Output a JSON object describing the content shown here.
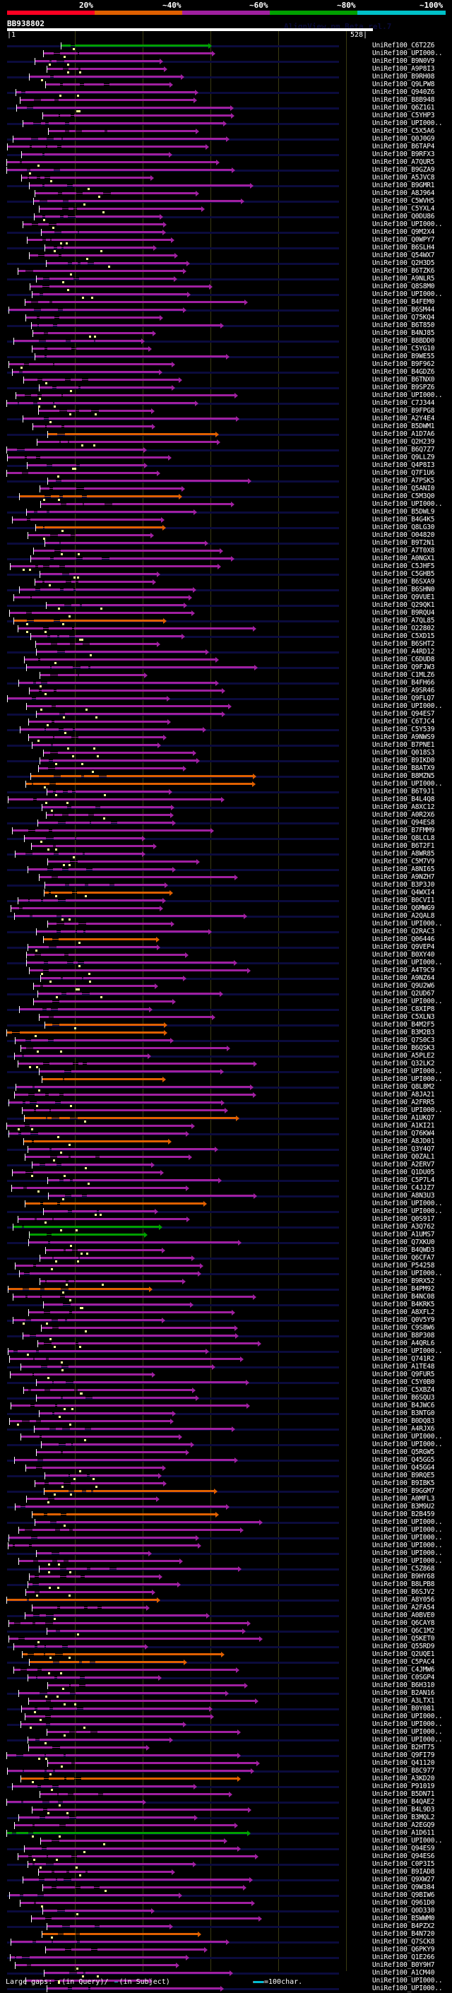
{
  "scale": {
    "labels": [
      "20%",
      "~40%",
      "~60%",
      "~80%",
      "~100%"
    ],
    "colors": [
      "#ff0022",
      "#e06000",
      "#a020a0",
      "#00a000",
      "#00c0c8"
    ]
  },
  "watermark": "AlignView.pm Beta rel.7",
  "query": {
    "id": "BB938802",
    "start": "|1",
    "end": "528|",
    "length": 528
  },
  "colors": {
    "low": "#ff0022",
    "orange": "#e06000",
    "purple": "#a020a0",
    "green": "#00a000",
    "cyan": "#00c0c8",
    "gap_query": "#ffff99"
  },
  "hits": [
    {
      "name": "UniRef100_C6T2Z6",
      "identity": "green"
    },
    {
      "name": "UniRef100_UPI000..",
      "identity": "purple"
    },
    {
      "name": "UniRef100_B9N0V9",
      "identity": "purple"
    },
    {
      "name": "UniRef100_A9P8I3",
      "identity": "purple"
    },
    {
      "name": "UniRef100_B9RH08",
      "identity": "purple"
    },
    {
      "name": "UniRef100_Q9LPW8",
      "identity": "purple"
    },
    {
      "name": "UniRef100_Q940Z6",
      "identity": "purple"
    },
    {
      "name": "UniRef100_B8B948",
      "identity": "purple"
    },
    {
      "name": "UniRef100_Q6Z1G1",
      "identity": "purple"
    },
    {
      "name": "UniRef100_C5YHP3",
      "identity": "purple"
    },
    {
      "name": "UniRef100_UPI000..",
      "identity": "purple"
    },
    {
      "name": "UniRef100_C5X5A6",
      "identity": "purple"
    },
    {
      "name": "UniRef100_Q0J0G9",
      "identity": "purple"
    },
    {
      "name": "UniRef100_B6TAP4",
      "identity": "purple"
    },
    {
      "name": "UniRef100_B9RFX3",
      "identity": "purple"
    },
    {
      "name": "UniRef100_A7QUR5",
      "identity": "purple"
    },
    {
      "name": "UniRef100_B9GZA9",
      "identity": "purple"
    },
    {
      "name": "UniRef100_A5JVC8",
      "identity": "purple"
    },
    {
      "name": "UniRef100_B9GMR1",
      "identity": "purple"
    },
    {
      "name": "UniRef100_A8J964",
      "identity": "purple"
    },
    {
      "name": "UniRef100_C5WVH5",
      "identity": "purple"
    },
    {
      "name": "UniRef100_C5YXL4",
      "identity": "purple"
    },
    {
      "name": "UniRef100_Q0DU86",
      "identity": "purple"
    },
    {
      "name": "UniRef100_UPI000..",
      "identity": "purple"
    },
    {
      "name": "UniRef100_Q9M2X4",
      "identity": "purple"
    },
    {
      "name": "UniRef100_Q0WPY7",
      "identity": "purple"
    },
    {
      "name": "UniRef100_B6SLH4",
      "identity": "purple"
    },
    {
      "name": "UniRef100_Q54WX7",
      "identity": "purple"
    },
    {
      "name": "UniRef100_Q2H3D5",
      "identity": "purple"
    },
    {
      "name": "UniRef100_B6TZK6",
      "identity": "purple"
    },
    {
      "name": "UniRef100_A9NLR5",
      "identity": "purple"
    },
    {
      "name": "UniRef100_Q8S8M0",
      "identity": "purple"
    },
    {
      "name": "UniRef100_UPI000..",
      "identity": "purple"
    },
    {
      "name": "UniRef100_B4FEM0",
      "identity": "purple"
    },
    {
      "name": "UniRef100_B6SM44",
      "identity": "purple"
    },
    {
      "name": "UniRef100_Q75KQ4",
      "identity": "purple"
    },
    {
      "name": "UniRef100_B6T850",
      "identity": "purple"
    },
    {
      "name": "UniRef100_B4NJ85",
      "identity": "purple"
    },
    {
      "name": "UniRef100_B8BDD0",
      "identity": "purple"
    },
    {
      "name": "UniRef100_C5YG10",
      "identity": "purple"
    },
    {
      "name": "UniRef100_B9WE55",
      "identity": "purple"
    },
    {
      "name": "UniRef100_B9F962",
      "identity": "purple"
    },
    {
      "name": "UniRef100_B4GDZ6",
      "identity": "purple"
    },
    {
      "name": "UniRef100_B6TNX0",
      "identity": "purple"
    },
    {
      "name": "UniRef100_B9SPZ6",
      "identity": "purple"
    },
    {
      "name": "UniRef100_UPI000..",
      "identity": "purple"
    },
    {
      "name": "UniRef100_C7J344",
      "identity": "purple"
    },
    {
      "name": "UniRef100_B9FPG8",
      "identity": "purple"
    },
    {
      "name": "UniRef100_A2Y4E4",
      "identity": "purple"
    },
    {
      "name": "UniRef100_B5DWM1",
      "identity": "purple"
    },
    {
      "name": "UniRef100_A1D7A6",
      "identity": "orange"
    },
    {
      "name": "UniRef100_Q2H239",
      "identity": "purple"
    },
    {
      "name": "UniRef100_B6Q7Z7",
      "identity": "purple"
    },
    {
      "name": "UniRef100_Q9LLZ9",
      "identity": "purple"
    },
    {
      "name": "UniRef100_Q4P8I3",
      "identity": "purple"
    },
    {
      "name": "UniRef100_Q7F1U6",
      "identity": "purple"
    },
    {
      "name": "UniRef100_A7PSK5",
      "identity": "purple"
    },
    {
      "name": "UniRef100_Q5ANI0",
      "identity": "purple"
    },
    {
      "name": "UniRef100_C5M3Q0",
      "identity": "orange"
    },
    {
      "name": "UniRef100_UPI000..",
      "identity": "purple"
    },
    {
      "name": "UniRef100_B5DWL9",
      "identity": "purple"
    },
    {
      "name": "UniRef100_B4G4K5",
      "identity": "purple"
    },
    {
      "name": "UniRef100_Q8LG30",
      "identity": "orange"
    },
    {
      "name": "UniRef100_O04820",
      "identity": "purple"
    },
    {
      "name": "UniRef100_B9T2N1",
      "identity": "purple"
    },
    {
      "name": "UniRef100_A7T0X8",
      "identity": "purple"
    },
    {
      "name": "UniRef100_A0NGX1",
      "identity": "purple"
    },
    {
      "name": "UniRef100_C5JHF5",
      "identity": "purple"
    },
    {
      "name": "UniRef100_C5GHB5",
      "identity": "purple"
    },
    {
      "name": "UniRef100_B6SXA9",
      "identity": "purple"
    },
    {
      "name": "UniRef100_B6SHN0",
      "identity": "purple"
    },
    {
      "name": "UniRef100_Q9VUE1",
      "identity": "purple"
    },
    {
      "name": "UniRef100_Q29QK1",
      "identity": "purple"
    },
    {
      "name": "UniRef100_B9RQU4",
      "identity": "purple"
    },
    {
      "name": "UniRef100_A7QL85",
      "identity": "orange"
    },
    {
      "name": "UniRef100_O22802",
      "identity": "purple"
    },
    {
      "name": "UniRef100_C5XD15",
      "identity": "purple"
    },
    {
      "name": "UniRef100_B6SHT2",
      "identity": "purple"
    },
    {
      "name": "UniRef100_A4RD12",
      "identity": "purple"
    },
    {
      "name": "UniRef100_C6DUD8",
      "identity": "purple"
    },
    {
      "name": "UniRef100_Q9FJW3",
      "identity": "purple"
    },
    {
      "name": "UniRef100_C1MLZ6",
      "identity": "purple"
    },
    {
      "name": "UniRef100_B4FH66",
      "identity": "purple"
    },
    {
      "name": "UniRef100_A9SR46",
      "identity": "purple"
    },
    {
      "name": "UniRef100_Q9FLQ7",
      "identity": "purple"
    },
    {
      "name": "UniRef100_UPI000..",
      "identity": "purple"
    },
    {
      "name": "UniRef100_Q94ES7",
      "identity": "purple"
    },
    {
      "name": "UniRef100_C6TJC4",
      "identity": "purple"
    },
    {
      "name": "UniRef100_C5Y539",
      "identity": "purple"
    },
    {
      "name": "UniRef100_A9NWS9",
      "identity": "purple"
    },
    {
      "name": "UniRef100_B7PNE1",
      "identity": "purple"
    },
    {
      "name": "UniRef100_Q018S3",
      "identity": "purple"
    },
    {
      "name": "UniRef100_B9IKD0",
      "identity": "purple"
    },
    {
      "name": "UniRef100_B8ATX9",
      "identity": "purple"
    },
    {
      "name": "UniRef100_B8MZN5",
      "identity": "orange"
    },
    {
      "name": "UniRef100_UPI000..",
      "identity": "orange"
    },
    {
      "name": "UniRef100_B6T9J1",
      "identity": "purple"
    },
    {
      "name": "UniRef100_B4L4Q8",
      "identity": "purple"
    },
    {
      "name": "UniRef100_A8XC12",
      "identity": "purple"
    },
    {
      "name": "UniRef100_A0R2X6",
      "identity": "purple"
    },
    {
      "name": "UniRef100_Q94ES8",
      "identity": "purple"
    },
    {
      "name": "UniRef100_B7FMM9",
      "identity": "purple"
    },
    {
      "name": "UniRef100_Q8LCL8",
      "identity": "purple"
    },
    {
      "name": "UniRef100_B6T2F1",
      "identity": "purple"
    },
    {
      "name": "UniRef100_A8WR85",
      "identity": "purple"
    },
    {
      "name": "UniRef100_C5M7V9",
      "identity": "purple"
    },
    {
      "name": "UniRef100_A8NI65",
      "identity": "purple"
    },
    {
      "name": "UniRef100_A9NZH7",
      "identity": "purple"
    },
    {
      "name": "UniRef100_B3P3J0",
      "identity": "purple"
    },
    {
      "name": "UniRef100_Q4WXI4",
      "identity": "orange"
    },
    {
      "name": "UniRef100_B0CVI1",
      "identity": "purple"
    },
    {
      "name": "UniRef100_Q6MWG9",
      "identity": "purple"
    },
    {
      "name": "UniRef100_A2QAL8",
      "identity": "purple"
    },
    {
      "name": "UniRef100_UPI000..",
      "identity": "purple"
    },
    {
      "name": "UniRef100_Q2RAC3",
      "identity": "purple"
    },
    {
      "name": "UniRef100_Q06446",
      "identity": "orange"
    },
    {
      "name": "UniRef100_Q9VEP4",
      "identity": "purple"
    },
    {
      "name": "UniRef100_B0XY40",
      "identity": "purple"
    },
    {
      "name": "UniRef100_UPI000..",
      "identity": "purple"
    },
    {
      "name": "UniRef100_A4T9C9",
      "identity": "purple"
    },
    {
      "name": "UniRef100_A9NZ64",
      "identity": "purple"
    },
    {
      "name": "UniRef100_Q9U2W6",
      "identity": "purple"
    },
    {
      "name": "UniRef100_Q2UD67",
      "identity": "purple"
    },
    {
      "name": "UniRef100_UPI000..",
      "identity": "purple"
    },
    {
      "name": "UniRef100_C8XIP8",
      "identity": "purple"
    },
    {
      "name": "UniRef100_C5XLN3",
      "identity": "purple"
    },
    {
      "name": "UniRef100_B4M2F5",
      "identity": "orange"
    },
    {
      "name": "UniRef100_B3M2B3",
      "identity": "orange"
    },
    {
      "name": "UniRef100_Q7S0C3",
      "identity": "purple"
    },
    {
      "name": "UniRef100_B6QSK3",
      "identity": "purple"
    },
    {
      "name": "UniRef100_A5PLE2",
      "identity": "purple"
    },
    {
      "name": "UniRef100_Q32LK2",
      "identity": "purple"
    },
    {
      "name": "UniRef100_UPI000..",
      "identity": "purple"
    },
    {
      "name": "UniRef100_UPI000..",
      "identity": "orange"
    },
    {
      "name": "UniRef100_Q8L8M2",
      "identity": "purple"
    },
    {
      "name": "UniRef100_A8JA21",
      "identity": "purple"
    },
    {
      "name": "UniRef100_A2FRR5",
      "identity": "purple"
    },
    {
      "name": "UniRef100_UPI000..",
      "identity": "purple"
    },
    {
      "name": "UniRef100_A1UKQ7",
      "identity": "orange"
    },
    {
      "name": "UniRef100_A1KI21",
      "identity": "purple"
    },
    {
      "name": "UniRef100_Q76KW4",
      "identity": "purple"
    },
    {
      "name": "UniRef100_A8JD01",
      "identity": "orange"
    },
    {
      "name": "UniRef100_Q3Y4Q7",
      "identity": "purple"
    },
    {
      "name": "UniRef100_Q0ZAL1",
      "identity": "purple"
    },
    {
      "name": "UniRef100_A2ERV7",
      "identity": "purple"
    },
    {
      "name": "UniRef100_Q1DU05",
      "identity": "purple"
    },
    {
      "name": "UniRef100_C5P7L4",
      "identity": "purple"
    },
    {
      "name": "UniRef100_C4JJZ7",
      "identity": "purple"
    },
    {
      "name": "UniRef100_A8N3U3",
      "identity": "purple"
    },
    {
      "name": "UniRef100_UPI000..",
      "identity": "orange"
    },
    {
      "name": "UniRef100_UPI000..",
      "identity": "purple"
    },
    {
      "name": "UniRef100_Q0S917",
      "identity": "purple"
    },
    {
      "name": "UniRef100_A3Q762",
      "identity": "green"
    },
    {
      "name": "UniRef100_A1UMS7",
      "identity": "green"
    },
    {
      "name": "UniRef100_Q7XKU0",
      "identity": "purple"
    },
    {
      "name": "UniRef100_B4QWD3",
      "identity": "purple"
    },
    {
      "name": "UniRef100_Q6CFA7",
      "identity": "purple"
    },
    {
      "name": "UniRef100_P54258",
      "identity": "purple"
    },
    {
      "name": "UniRef100_UPI000..",
      "identity": "purple"
    },
    {
      "name": "UniRef100_B9RX52",
      "identity": "purple"
    },
    {
      "name": "UniRef100_B4PM92",
      "identity": "orange"
    },
    {
      "name": "UniRef100_B4NC08",
      "identity": "purple"
    },
    {
      "name": "UniRef100_B4KRK5",
      "identity": "purple"
    },
    {
      "name": "UniRef100_A8XFL2",
      "identity": "purple"
    },
    {
      "name": "UniRef100_Q0V5Y9",
      "identity": "purple"
    },
    {
      "name": "UniRef100_C9S8W6",
      "identity": "purple"
    },
    {
      "name": "UniRef100_B8P308",
      "identity": "purple"
    },
    {
      "name": "UniRef100_A4QRL6",
      "identity": "purple"
    },
    {
      "name": "UniRef100_UPI000..",
      "identity": "purple"
    },
    {
      "name": "UniRef100_Q741R2",
      "identity": "purple"
    },
    {
      "name": "UniRef100_A1TE48",
      "identity": "purple"
    },
    {
      "name": "UniRef100_Q9FUR5",
      "identity": "purple"
    },
    {
      "name": "UniRef100_C5Y0B0",
      "identity": "purple"
    },
    {
      "name": "UniRef100_C5XBZ4",
      "identity": "purple"
    },
    {
      "name": "UniRef100_B6SQU3",
      "identity": "purple"
    },
    {
      "name": "UniRef100_B4JWC6",
      "identity": "purple"
    },
    {
      "name": "UniRef100_B3NTG0",
      "identity": "purple"
    },
    {
      "name": "UniRef100_B0DQ83",
      "identity": "purple"
    },
    {
      "name": "UniRef100_A4RJX6",
      "identity": "purple"
    },
    {
      "name": "UniRef100_UPI000..",
      "identity": "purple"
    },
    {
      "name": "UniRef100_UPI000..",
      "identity": "purple"
    },
    {
      "name": "UniRef100_Q5RGW5",
      "identity": "purple"
    },
    {
      "name": "UniRef100_Q45GG5",
      "identity": "purple"
    },
    {
      "name": "UniRef100_Q45GG4",
      "identity": "purple"
    },
    {
      "name": "UniRef100_B9RQE5",
      "identity": "purple"
    },
    {
      "name": "UniRef100_B9IBK5",
      "identity": "purple"
    },
    {
      "name": "UniRef100_B9GGM7",
      "identity": "orange"
    },
    {
      "name": "UniRef100_A0MFL3",
      "identity": "purple"
    },
    {
      "name": "UniRef100_B3M9U2",
      "identity": "purple"
    },
    {
      "name": "UniRef100_B2B459",
      "identity": "orange"
    },
    {
      "name": "UniRef100_UPI000..",
      "identity": "purple"
    },
    {
      "name": "UniRef100_UPI000..",
      "identity": "purple"
    },
    {
      "name": "UniRef100_UPI000..",
      "identity": "purple"
    },
    {
      "name": "UniRef100_UPI000..",
      "identity": "purple"
    },
    {
      "name": "UniRef100_UPI000..",
      "identity": "purple"
    },
    {
      "name": "UniRef100_UPI000..",
      "identity": "purple"
    },
    {
      "name": "UniRef100_C5Z868",
      "identity": "purple"
    },
    {
      "name": "UniRef100_B9HY68",
      "identity": "purple"
    },
    {
      "name": "UniRef100_B8LPB8",
      "identity": "purple"
    },
    {
      "name": "UniRef100_B6SJV2",
      "identity": "purple"
    },
    {
      "name": "UniRef100_A8Y056",
      "identity": "orange"
    },
    {
      "name": "UniRef100_A2FA54",
      "identity": "purple"
    },
    {
      "name": "UniRef100_A0BVE0",
      "identity": "purple"
    },
    {
      "name": "UniRef100_Q6CAY8",
      "identity": "purple"
    },
    {
      "name": "UniRef100_Q6C1M2",
      "identity": "purple"
    },
    {
      "name": "UniRef100_Q5KET0",
      "identity": "purple"
    },
    {
      "name": "UniRef100_Q55RD9",
      "identity": "purple"
    },
    {
      "name": "UniRef100_Q2UQE1",
      "identity": "orange"
    },
    {
      "name": "UniRef100_C5PAC4",
      "identity": "orange"
    },
    {
      "name": "UniRef100_C4JMW6",
      "identity": "purple"
    },
    {
      "name": "UniRef100_C0SGP4",
      "identity": "purple"
    },
    {
      "name": "UniRef100_B6H310",
      "identity": "purple"
    },
    {
      "name": "UniRef100_B2AN16",
      "identity": "purple"
    },
    {
      "name": "UniRef100_A3LTX1",
      "identity": "purple"
    },
    {
      "name": "UniRef100_B0Y081",
      "identity": "purple"
    },
    {
      "name": "UniRef100_UPI000..",
      "identity": "purple"
    },
    {
      "name": "UniRef100_UPI000..",
      "identity": "purple"
    },
    {
      "name": "UniRef100_UPI000..",
      "identity": "purple"
    },
    {
      "name": "UniRef100_UPI000..",
      "identity": "purple"
    },
    {
      "name": "UniRef100_B2HT75",
      "identity": "purple"
    },
    {
      "name": "UniRef100_Q9FI79",
      "identity": "purple"
    },
    {
      "name": "UniRef100_Q41120",
      "identity": "purple"
    },
    {
      "name": "UniRef100_B8C977",
      "identity": "purple"
    },
    {
      "name": "UniRef100_A3KD20",
      "identity": "orange"
    },
    {
      "name": "UniRef100_P91019",
      "identity": "purple"
    },
    {
      "name": "UniRef100_B5DN71",
      "identity": "purple"
    },
    {
      "name": "UniRef100_B4QAE2",
      "identity": "purple"
    },
    {
      "name": "UniRef100_B4L9D3",
      "identity": "purple"
    },
    {
      "name": "UniRef100_B3MQL2",
      "identity": "purple"
    },
    {
      "name": "UniRef100_A2EGQ9",
      "identity": "purple"
    },
    {
      "name": "UniRef100_A1D611",
      "identity": "green"
    },
    {
      "name": "UniRef100_UPI000..",
      "identity": "purple"
    },
    {
      "name": "UniRef100_Q94ES9",
      "identity": "purple"
    },
    {
      "name": "UniRef100_Q94ES6",
      "identity": "purple"
    },
    {
      "name": "UniRef100_C0P3I5",
      "identity": "purple"
    },
    {
      "name": "UniRef100_B9IAD8",
      "identity": "purple"
    },
    {
      "name": "UniRef100_Q9XW27",
      "identity": "purple"
    },
    {
      "name": "UniRef100_Q9W384",
      "identity": "purple"
    },
    {
      "name": "UniRef100_Q9BIW6",
      "identity": "purple"
    },
    {
      "name": "UniRef100_Q961D0",
      "identity": "purple"
    },
    {
      "name": "UniRef100_Q0D330",
      "identity": "purple"
    },
    {
      "name": "UniRef100_B5WWM0",
      "identity": "purple"
    },
    {
      "name": "UniRef100_B4PZX2",
      "identity": "purple"
    },
    {
      "name": "UniRef100_B4N720",
      "identity": "orange"
    },
    {
      "name": "UniRef100_Q7SCK8",
      "identity": "purple"
    },
    {
      "name": "UniRef100_Q6PKY9",
      "identity": "purple"
    },
    {
      "name": "UniRef100_Q1E266",
      "identity": "purple"
    },
    {
      "name": "UniRef100_B0Y9H7",
      "identity": "purple"
    },
    {
      "name": "UniRef100_A1CM40",
      "identity": "purple"
    },
    {
      "name": "UniRef100_UPI000..",
      "identity": "purple"
    },
    {
      "name": "UniRef100_UPI000..",
      "identity": "purple"
    }
  ],
  "footer": {
    "large_gaps_label": "Large gaps:",
    "in_query": "(in Query)/",
    "in_subject": "(in Subject)",
    "scale_legend": "=100char."
  }
}
